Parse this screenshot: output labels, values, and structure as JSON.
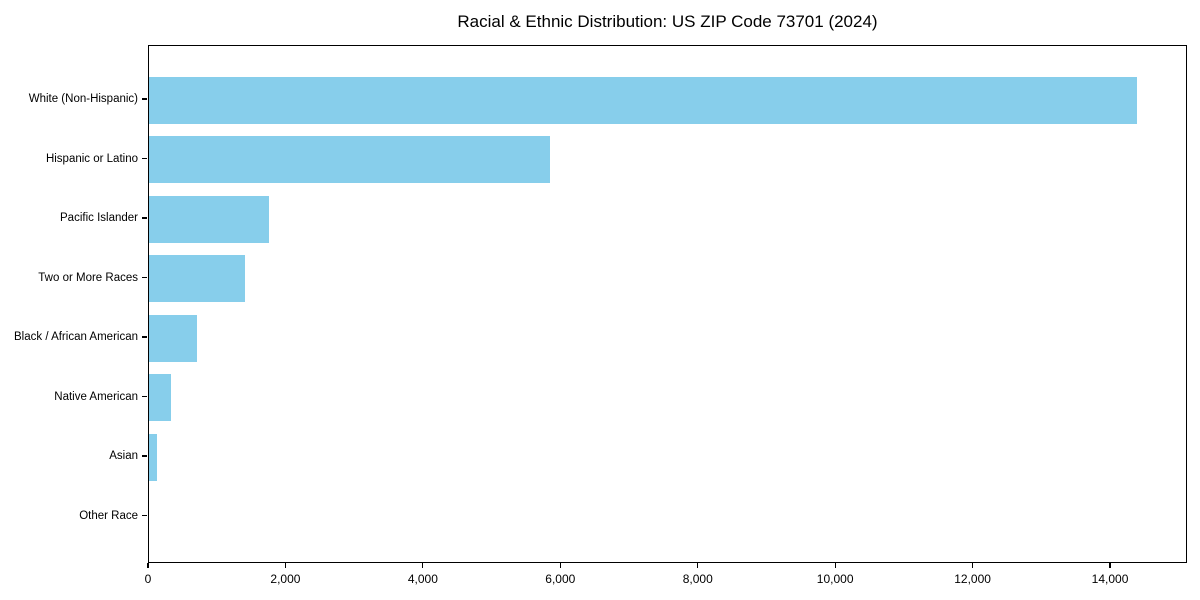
{
  "chart_data": {
    "type": "bar",
    "orientation": "horizontal",
    "title": "Racial & Ethnic Distribution: US ZIP Code 73701 (2024)",
    "categories": [
      "White (Non-Hispanic)",
      "Hispanic or Latino",
      "Pacific Islander",
      "Two or More Races",
      "Black / African American",
      "Native American",
      "Asian",
      "Other Race"
    ],
    "values": [
      14400,
      5850,
      1750,
      1400,
      700,
      320,
      110,
      0
    ],
    "xlabel": "",
    "ylabel": "",
    "xlim": [
      0,
      15120
    ],
    "x_ticks": [
      0,
      2000,
      4000,
      6000,
      8000,
      10000,
      12000,
      14000
    ],
    "x_tick_labels": [
      "0",
      "2,000",
      "4,000",
      "6,000",
      "8,000",
      "10,000",
      "12,000",
      "14,000"
    ],
    "bar_color": "#87CEEB",
    "frame_color": "#000000",
    "grid": false,
    "legend": "none"
  }
}
